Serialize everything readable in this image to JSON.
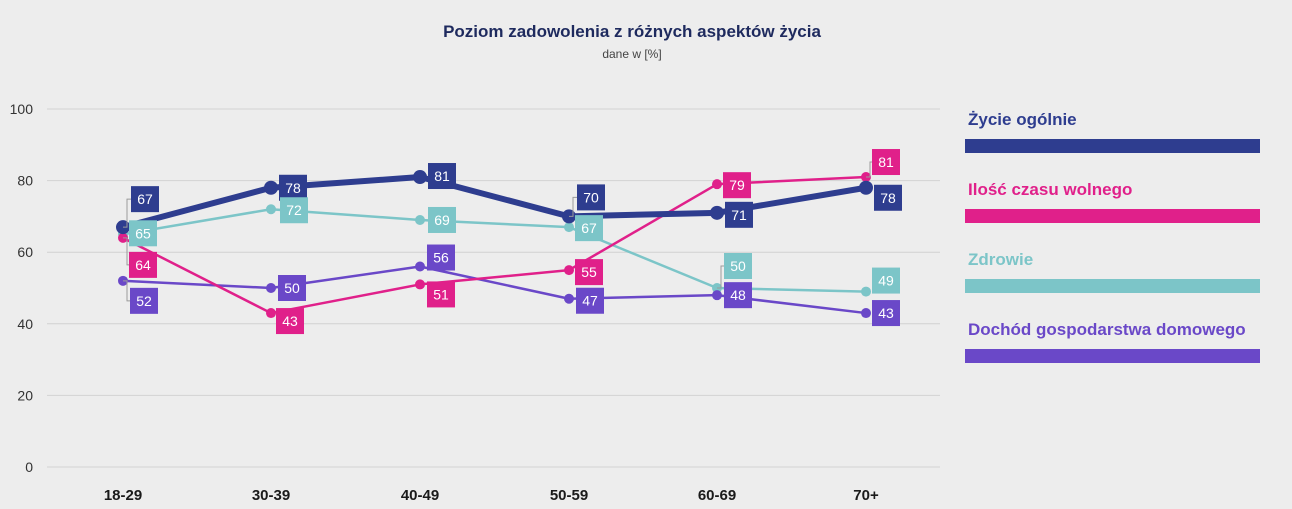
{
  "chart_data": {
    "type": "line",
    "title": "Poziom zadowolenia z różnych aspektów życia",
    "subtitle": "dane w [%]",
    "categories": [
      "18-29",
      "30-39",
      "40-49",
      "50-59",
      "60-69",
      "70+"
    ],
    "ylim": [
      0,
      100
    ],
    "yticks": [
      0,
      20,
      40,
      60,
      80,
      100
    ],
    "grid": true,
    "legend_position": "right",
    "series": [
      {
        "name": "Życie ogólnie",
        "values": [
          67,
          78,
          81,
          70,
          71,
          78
        ],
        "color": "#2e3d8f"
      },
      {
        "name": "Ilość czasu wolnego",
        "values": [
          64,
          43,
          51,
          55,
          79,
          81
        ],
        "color": "#e0208a"
      },
      {
        "name": "Zdrowie",
        "values": [
          65,
          72,
          69,
          67,
          50,
          49
        ],
        "color": "#7cc5c8"
      },
      {
        "name": "Dochód gospodarstwa domowego",
        "values": [
          52,
          50,
          56,
          47,
          48,
          43
        ],
        "color": "#6a48c8"
      }
    ]
  }
}
